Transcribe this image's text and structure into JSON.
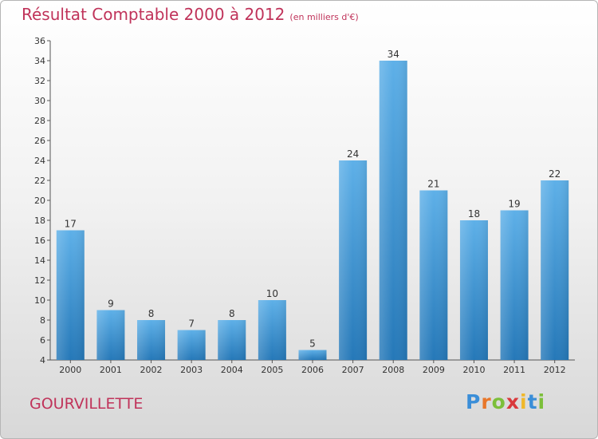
{
  "header": {
    "title": "Résultat Comptable 2000 à 2012",
    "unit": "(en milliers d'€)"
  },
  "commune": "GOURVILLETTE",
  "logo": {
    "letters": [
      "P",
      "r",
      "o",
      "x",
      "i",
      "t",
      "i"
    ],
    "colors": [
      "#3a8ed8",
      "#e8772a",
      "#7cbf3a",
      "#d9393c",
      "#f0b82a",
      "#3a8ed8",
      "#7cbf3a"
    ]
  },
  "colors": {
    "title": "#c0335a",
    "bar_top": "#5eb0e8",
    "bar_bottom": "#2578b8"
  },
  "chart_data": {
    "type": "bar",
    "categories": [
      "2000",
      "2001",
      "2002",
      "2003",
      "2004",
      "2005",
      "2006",
      "2007",
      "2008",
      "2009",
      "2010",
      "2011",
      "2012"
    ],
    "values": [
      17,
      9,
      8,
      7,
      8,
      10,
      5,
      24,
      34,
      21,
      18,
      19,
      22
    ],
    "ylim": [
      4,
      36
    ],
    "yticks": [
      4,
      6,
      8,
      10,
      12,
      14,
      16,
      18,
      20,
      22,
      24,
      26,
      28,
      30,
      32,
      34,
      36
    ],
    "grid": false,
    "data_labels": true
  }
}
